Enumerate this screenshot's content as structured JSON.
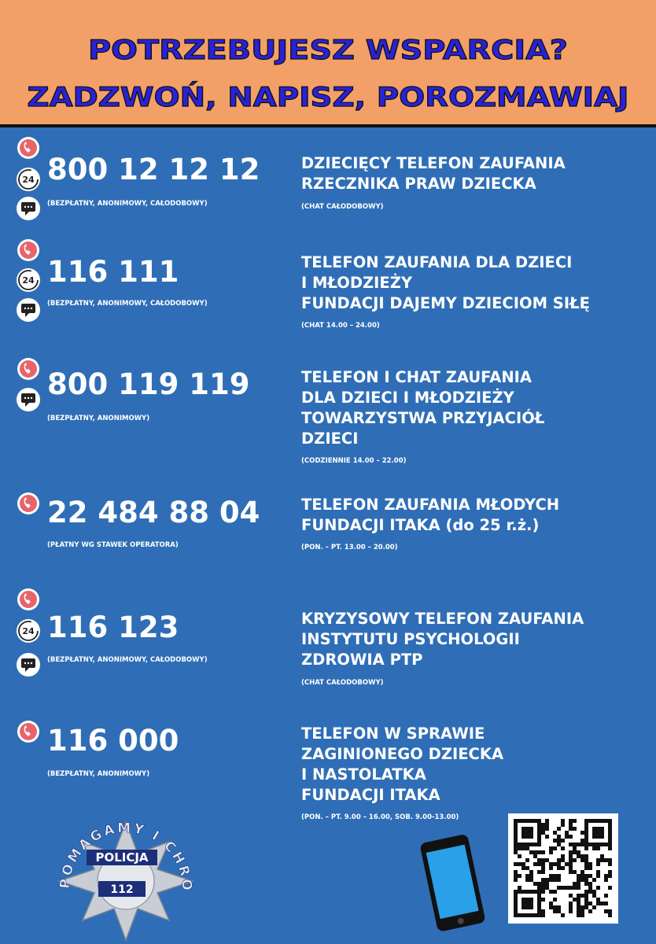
{
  "header": {
    "line1": "POTRZEBUJESZ WSPARCIA?",
    "line2": "ZADZWOŃ, NAPISZ, POROZMAWIAJ"
  },
  "badge_24": "24",
  "entries": [
    {
      "number": "800 12 12 12",
      "note": "(BEZPŁATNY, ANONIMOWY, CAŁODOBOWY)",
      "title": [
        "DZIECIĘCY TELEFON ZAUFANIA",
        "RZECZNIKA PRAW DZIECKA"
      ],
      "hours": "(CHAT CAŁODOBOWY)"
    },
    {
      "number": "116 111",
      "note": "(BEZPŁATNY, ANONIMOWY, CAŁODOBOWY)",
      "title": [
        "TELEFON ZAUFANIA DLA DZIECI",
        "I MŁODZIEŻY",
        "FUNDACJI DAJEMY DZIECIOM SIŁĘ"
      ],
      "hours": "(CHAT 14.00 – 24.00)"
    },
    {
      "number": "800 119 119",
      "note": "(BEZPŁATNY, ANONIMOWY)",
      "title": [
        "TELEFON I CHAT ZAUFANIA",
        "DLA DZIECI I MŁODZIEŻY",
        "TOWARZYSTWA PRZYJACIÓŁ",
        "DZIECI"
      ],
      "hours": "(CODZIENNIE 14.00 – 22.00)"
    },
    {
      "number": "22 484 88 04",
      "note": "(PŁATNY WG STAWEK OPERATORA)",
      "title": [
        "TELEFON ZAUFANIA MŁODYCH",
        "FUNDACJI ITAKA (do 25 r.ż.)"
      ],
      "hours": "(PON. – PT. 13.00 – 20.00)"
    },
    {
      "number": "116 123",
      "note": "(BEZPŁATNY, ANONIMOWY, CAŁODOBOWY)",
      "title": [
        "KRYZYSOWY TELEFON ZAUFANIA",
        "INSTYTUTU PSYCHOLOGII",
        "ZDROWIA PTP"
      ],
      "hours": "(CHAT CAŁODOBOWY)"
    },
    {
      "number": "116 000",
      "note": "(BEZPŁATNY, ANONIMOWY)",
      "title": [
        "TELEFON W SPRAWIE",
        "ZAGINIONEGO DZIECKA",
        "I NASTOLATKA",
        "FUNDACJI ITAKA"
      ],
      "hours": "(PON. – PT. 9.00 – 16.00, SOB. 9.00-13.00)"
    }
  ],
  "logo": {
    "motto": "POMAGAMY I CHRONIMY",
    "name": "POLICJA",
    "number": "112"
  }
}
